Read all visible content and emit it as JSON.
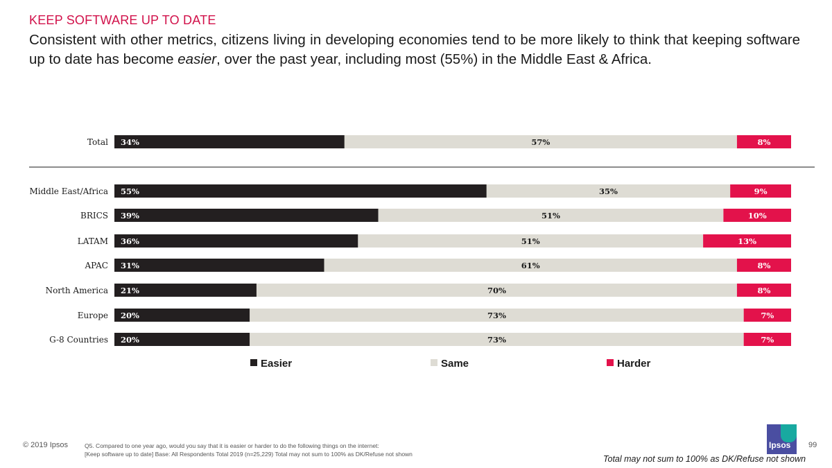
{
  "header": {
    "section_title": "KEEP SOFTWARE UP TO DATE",
    "subtitle_before": "Consistent with other metrics, citizens living in developing economies tend to be more likely to think that keeping software up to date has become ",
    "subtitle_emphasis": "easier",
    "subtitle_after": ", over the past year, including most (55%) in the Middle East & Africa."
  },
  "chart_data": {
    "type": "bar",
    "orientation": "horizontal",
    "stacked": true,
    "categories": [
      "Total",
      "Middle East/Africa",
      "BRICS",
      "LATAM",
      "APAC",
      "North America",
      "Europe",
      "G-8 Countries"
    ],
    "series": [
      {
        "name": "Easier",
        "color": "#231f20",
        "values": [
          34,
          55,
          39,
          36,
          31,
          21,
          20,
          20
        ]
      },
      {
        "name": "Same",
        "color": "#dedcd4",
        "values": [
          57,
          35,
          51,
          51,
          61,
          70,
          73,
          73
        ]
      },
      {
        "name": "Harder",
        "color": "#e3124b",
        "values": [
          8,
          9,
          10,
          13,
          8,
          8,
          7,
          7
        ]
      }
    ],
    "value_suffix": "%",
    "legend_position": "bottom",
    "grid": false
  },
  "footer": {
    "copyright": "© 2019 Ipsos",
    "question": "Q5. Compared to one year ago, would you say that it is easier or harder to do the following things on the internet:",
    "base": "[Keep software up to date] Base: All Respondents Total  2019 (n=25,229) Total may not sum to 100% as DK/Refuse not shown",
    "page_number": "99",
    "dk_note": "Total may not sum to 100% as DK/Refuse not shown",
    "logo_text": "Ipsos"
  }
}
